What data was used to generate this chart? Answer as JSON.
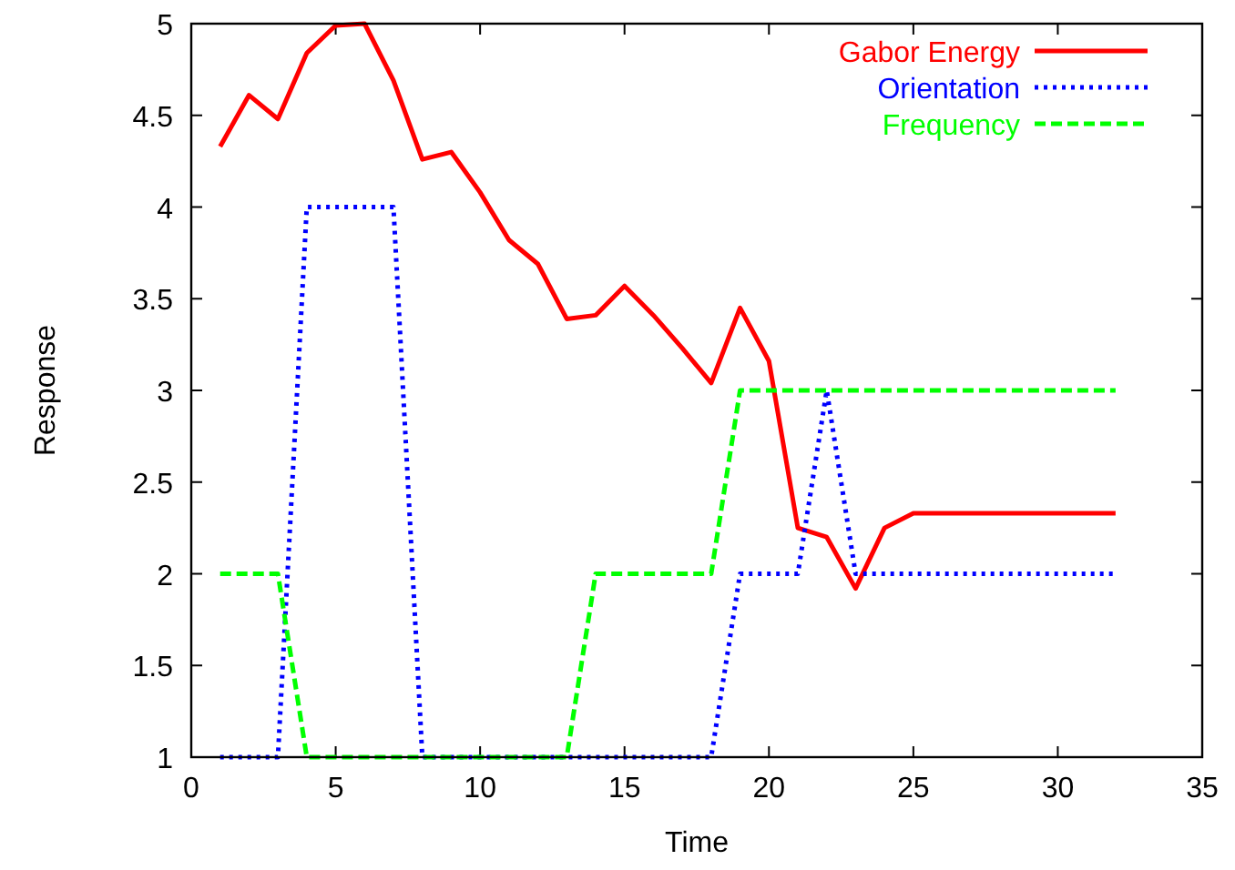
{
  "chart_data": {
    "type": "line",
    "xlabel": "Time",
    "ylabel": "Response",
    "xlim": [
      0,
      35
    ],
    "ylim": [
      1,
      5
    ],
    "xticks": [
      0,
      5,
      10,
      15,
      20,
      25,
      30,
      35
    ],
    "yticks": [
      1,
      1.5,
      2,
      2.5,
      3,
      3.5,
      4,
      4.5,
      5
    ],
    "legend": "top right",
    "grid": false,
    "x": [
      1,
      2,
      3,
      4,
      5,
      6,
      7,
      8,
      9,
      10,
      11,
      12,
      13,
      14,
      15,
      16,
      17,
      18,
      19,
      20,
      21,
      22,
      23,
      24,
      25,
      26,
      27,
      28,
      29,
      30,
      31,
      32
    ],
    "series": [
      {
        "name": "Gabor Energy",
        "color": "#ff0000",
        "line_style": "solid",
        "values": [
          4.33,
          4.61,
          4.48,
          4.84,
          4.99,
          5,
          4.69,
          4.26,
          4.3,
          4.08,
          3.82,
          3.69,
          3.39,
          3.41,
          3.57,
          3.41,
          3.23,
          3.04,
          3.45,
          3.16,
          2.25,
          2.2,
          1.92,
          2.25,
          2.33,
          2.33,
          2.33,
          2.33,
          2.33,
          2.33,
          2.33,
          2.33
        ]
      },
      {
        "name": "Orientation",
        "color": "#0000ff",
        "line_style": "dotted",
        "values": [
          1,
          1,
          1,
          4,
          4,
          4,
          4,
          1,
          1,
          1,
          1,
          1,
          1,
          1,
          1,
          1,
          1,
          1,
          2,
          2,
          2,
          3,
          2,
          2,
          2,
          2,
          2,
          2,
          2,
          2,
          2,
          2
        ]
      },
      {
        "name": "Frequency",
        "color": "#00ff00",
        "line_style": "dashed",
        "values": [
          2,
          2,
          2,
          1,
          1,
          1,
          1,
          1,
          1,
          1,
          1,
          1,
          1,
          2,
          2,
          2,
          2,
          2,
          3,
          3,
          3,
          3,
          3,
          3,
          3,
          3,
          3,
          3,
          3,
          3,
          3,
          3
        ]
      }
    ]
  }
}
